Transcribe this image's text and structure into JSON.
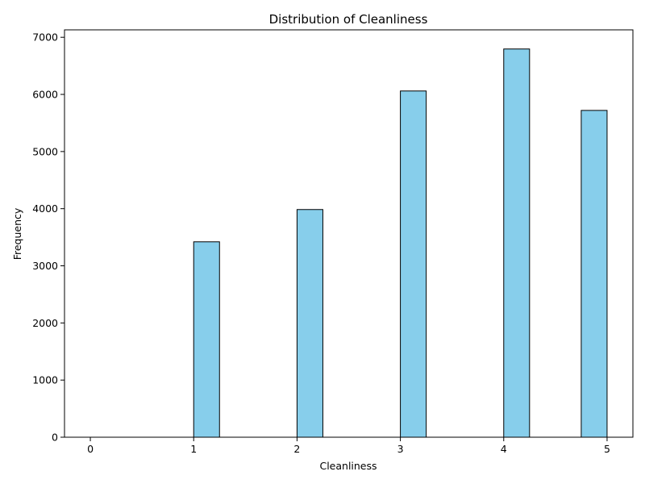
{
  "chart_data": {
    "type": "bar",
    "title": "Distribution of Cleanliness",
    "xlabel": "Cleanliness",
    "ylabel": "Frequency",
    "xlim": [
      -0.25,
      5.25
    ],
    "ylim": [
      0,
      7130
    ],
    "xticks": [
      0,
      1,
      2,
      3,
      4,
      5
    ],
    "yticks": [
      0,
      1000,
      2000,
      3000,
      4000,
      5000,
      6000,
      7000
    ],
    "bar_color": "#87CEEB",
    "edge_color": "#000000",
    "bins": [
      {
        "start": 0.0,
        "end": 0.25,
        "value": 0
      },
      {
        "start": 0.25,
        "end": 0.5,
        "value": 0
      },
      {
        "start": 0.5,
        "end": 0.75,
        "value": 0
      },
      {
        "start": 0.75,
        "end": 1.0,
        "value": 0
      },
      {
        "start": 1.0,
        "end": 1.25,
        "value": 3420
      },
      {
        "start": 1.25,
        "end": 1.5,
        "value": 0
      },
      {
        "start": 1.5,
        "end": 1.75,
        "value": 0
      },
      {
        "start": 1.75,
        "end": 2.0,
        "value": 0
      },
      {
        "start": 2.0,
        "end": 2.25,
        "value": 3985
      },
      {
        "start": 2.25,
        "end": 2.5,
        "value": 0
      },
      {
        "start": 2.5,
        "end": 2.75,
        "value": 0
      },
      {
        "start": 2.75,
        "end": 3.0,
        "value": 0
      },
      {
        "start": 3.0,
        "end": 3.25,
        "value": 6060
      },
      {
        "start": 3.25,
        "end": 3.5,
        "value": 0
      },
      {
        "start": 3.5,
        "end": 3.75,
        "value": 0
      },
      {
        "start": 3.75,
        "end": 4.0,
        "value": 0
      },
      {
        "start": 4.0,
        "end": 4.25,
        "value": 6795
      },
      {
        "start": 4.25,
        "end": 4.5,
        "value": 0
      },
      {
        "start": 4.5,
        "end": 4.75,
        "value": 0
      },
      {
        "start": 4.75,
        "end": 5.0,
        "value": 5720
      }
    ]
  }
}
